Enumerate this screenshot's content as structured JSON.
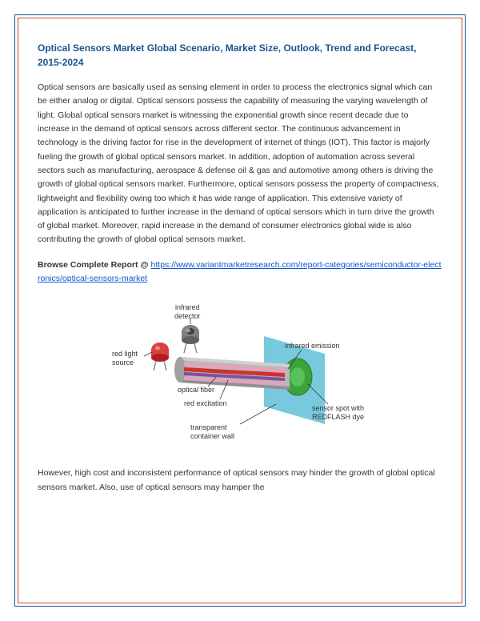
{
  "title": "Optical Sensors Market Global Scenario, Market Size, Outlook, Trend and Forecast, 2015-2024",
  "para1": "Optical sensors are basically used as sensing element in order to process the electronics signal which can be either analog or digital. Optical sensors possess the capability of measuring the varying wavelength of light. Global optical sensors market is witnessing the exponential growth since recent decade due to increase in the demand of optical sensors across different sector. The continuous advancement in technology is the driving factor for rise in the development of internet of things (IOT). This factor is majorly fueling the growth of global optical sensors market. In addition, adoption of automation across several sectors such as manufacturing, aerospace & defense oil & gas and automotive among others is driving the growth of global optical sensors market. Furthermore, optical sensors possess the property of compactness, lightweight and flexibility owing too which it has wide range of application. This extensive variety of application is anticipated to further increase in the demand of optical sensors which in turn drive the growth of global market. Moreover, rapid increase in the demand of consumer electronics global wide is also contributing the growth of global optical sensors market.",
  "browse_label": "Browse Complete Report @ ",
  "browse_url": "https://www.variantmarketresearch.com/report-categories/semiconductor-electronics/optical-sensors-market",
  "para2": "However, high cost and inconsistent performance of optical sensors may hinder the growth of global optical sensors market. Also, use of optical sensors may hamper the",
  "diagram": {
    "labels": {
      "infrared_detector": "infrared\ndetector",
      "red_light_source": "red light\nsource",
      "optical_fiber": "optical fiber",
      "red_excitation": "red excitation",
      "transparent_container_wall": "transparent\ncontainer wall",
      "infrared_emission": "infrared emission",
      "sensor_spot": "sensor spot with\nREDFLASH dye"
    },
    "colors": {
      "led_red": "#d94040",
      "detector_gray": "#808080",
      "fiber_gray": "#b8b8b8",
      "fiber_pink": "#e6a0c0",
      "fiber_red": "#d03030",
      "fiber_purple": "#8050a0",
      "wall_cyan": "#60c0d8",
      "sensor_green": "#3aa33a",
      "detector_tip": "#404040"
    }
  },
  "style": {
    "title_color": "#1a5490",
    "link_color": "#1155cc",
    "border_outer": "#1a5490",
    "border_inner": "#c74634",
    "text_color": "#333333",
    "title_fontsize": 12,
    "body_fontsize": 10.5,
    "line_height": 1.65
  }
}
